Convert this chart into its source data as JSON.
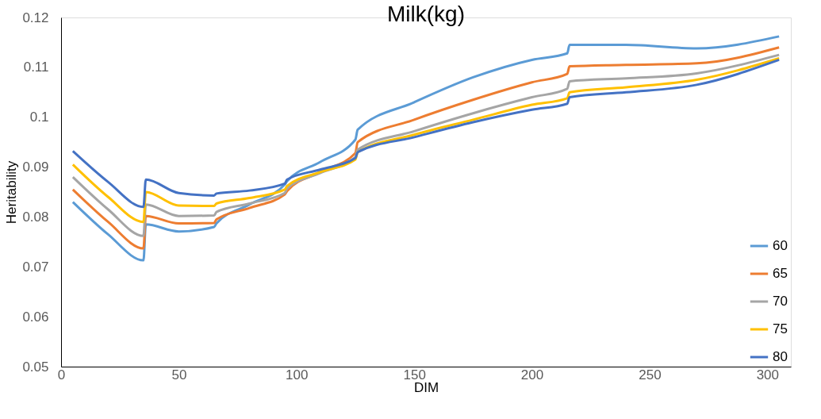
{
  "chart_data": {
    "type": "line",
    "title": "Milk(kg)",
    "xlabel": "DIM",
    "ylabel": "Heritability",
    "x": [
      5,
      20,
      35,
      36,
      50,
      65,
      66,
      80,
      95,
      96,
      110,
      125,
      126,
      150,
      175,
      200,
      215,
      216,
      240,
      270,
      305
    ],
    "series": [
      {
        "name": "60",
        "color": "#5b9bd5",
        "values": [
          0.083,
          0.0765,
          0.0713,
          0.0785,
          0.0771,
          0.078,
          0.0787,
          0.0825,
          0.0865,
          0.0872,
          0.091,
          0.0955,
          0.0975,
          0.103,
          0.108,
          0.1115,
          0.1128,
          0.1145,
          0.1145,
          0.1138,
          0.1162
        ]
      },
      {
        "name": "65",
        "color": "#ed7d31",
        "values": [
          0.0855,
          0.079,
          0.0737,
          0.0802,
          0.0787,
          0.0788,
          0.0795,
          0.0818,
          0.0845,
          0.0852,
          0.089,
          0.0928,
          0.095,
          0.0995,
          0.1035,
          0.107,
          0.1087,
          0.1102,
          0.1105,
          0.1108,
          0.114
        ]
      },
      {
        "name": "70",
        "color": "#a5a5a5",
        "values": [
          0.088,
          0.0815,
          0.0762,
          0.0825,
          0.0802,
          0.0803,
          0.081,
          0.0827,
          0.0848,
          0.0857,
          0.0888,
          0.092,
          0.0935,
          0.0972,
          0.1008,
          0.104,
          0.1057,
          0.1072,
          0.1078,
          0.1088,
          0.1125
        ]
      },
      {
        "name": "75",
        "color": "#ffc000",
        "values": [
          0.0905,
          0.084,
          0.079,
          0.085,
          0.0823,
          0.0822,
          0.0827,
          0.0838,
          0.0855,
          0.0862,
          0.089,
          0.0915,
          0.093,
          0.0965,
          0.0995,
          0.1025,
          0.1038,
          0.105,
          0.106,
          0.1075,
          0.1118
        ]
      },
      {
        "name": "80",
        "color": "#4472c4",
        "values": [
          0.0932,
          0.087,
          0.082,
          0.0875,
          0.0848,
          0.0843,
          0.0847,
          0.0853,
          0.0867,
          0.0875,
          0.0895,
          0.0918,
          0.093,
          0.096,
          0.099,
          0.1015,
          0.1027,
          0.104,
          0.105,
          0.1065,
          0.1115
        ]
      }
    ],
    "xlim": [
      0,
      310
    ],
    "xticks": [
      0,
      50,
      100,
      150,
      200,
      250,
      300
    ],
    "ylim": [
      0.05,
      0.12
    ],
    "yticks": [
      0.05,
      0.06,
      0.07,
      0.08,
      0.09,
      0.1,
      0.11,
      0.12
    ],
    "grid": false,
    "legend": "bottom right",
    "marker": "none",
    "line_style": "solid"
  }
}
